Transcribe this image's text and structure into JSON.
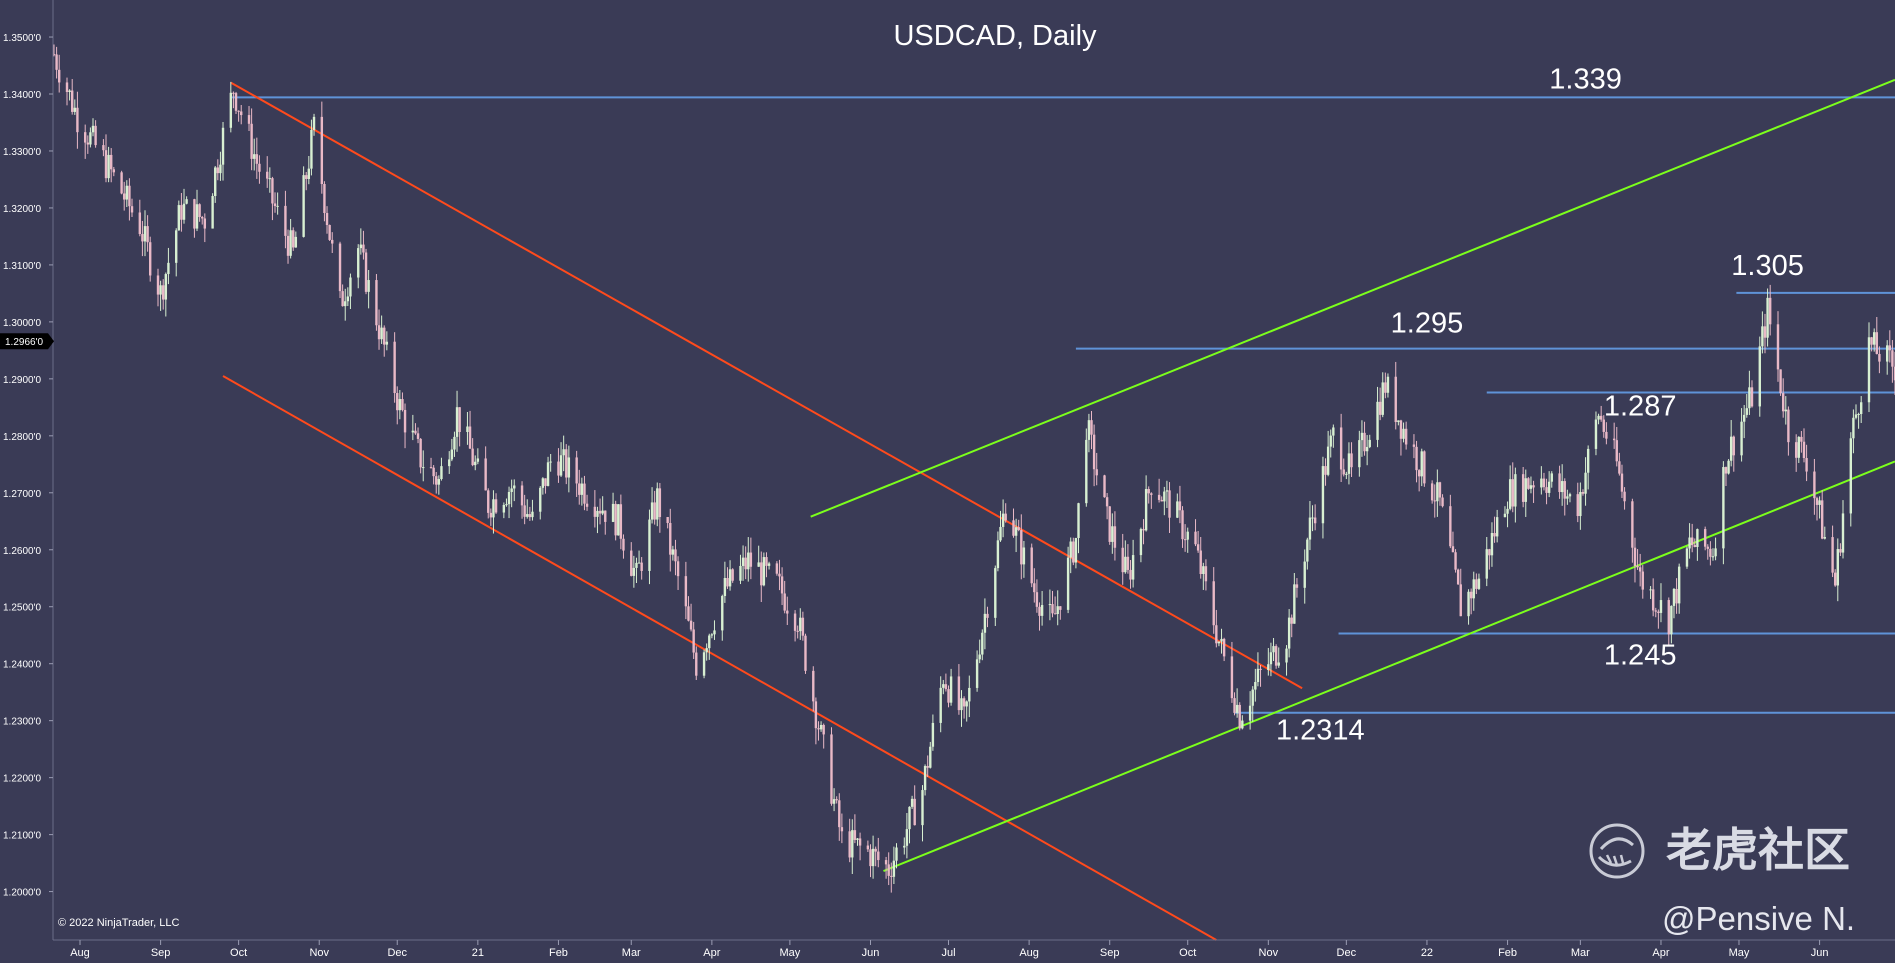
{
  "chart_data": {
    "type": "candlestick",
    "title": "USDCAD, Daily",
    "copyright": "© 2022 NinjaTrader, LLC",
    "watermark_brand": "老虎社区",
    "watermark_author": "@Pensive N.",
    "current_price_label": "1.2966'0",
    "current_price": 1.2966,
    "ylim": [
      1.1915,
      1.3565
    ],
    "y_ticks": [
      {
        "v": 1.35,
        "label": "1.3500'0"
      },
      {
        "v": 1.34,
        "label": "1.3400'0"
      },
      {
        "v": 1.33,
        "label": "1.3300'0"
      },
      {
        "v": 1.32,
        "label": "1.3200'0"
      },
      {
        "v": 1.31,
        "label": "1.3100'0"
      },
      {
        "v": 1.3,
        "label": "1.3000'0"
      },
      {
        "v": 1.29,
        "label": "1.2900'0"
      },
      {
        "v": 1.28,
        "label": "1.2800'0"
      },
      {
        "v": 1.27,
        "label": "1.2700'0"
      },
      {
        "v": 1.26,
        "label": "1.2600'0"
      },
      {
        "v": 1.25,
        "label": "1.2500'0"
      },
      {
        "v": 1.24,
        "label": "1.2400'0"
      },
      {
        "v": 1.23,
        "label": "1.2300'0"
      },
      {
        "v": 1.22,
        "label": "1.2200'0"
      },
      {
        "v": 1.21,
        "label": "1.2100'0"
      },
      {
        "v": 1.2,
        "label": "1.2000'0"
      }
    ],
    "x_range": [
      "2020-07-22",
      "2022-06-30"
    ],
    "x_ticks": [
      {
        "date": "2020-08-01",
        "label": "Aug"
      },
      {
        "date": "2020-09-01",
        "label": "Sep"
      },
      {
        "date": "2020-10-01",
        "label": "Oct"
      },
      {
        "date": "2020-11-01",
        "label": "Nov"
      },
      {
        "date": "2020-12-01",
        "label": "Dec"
      },
      {
        "date": "2021-01-01",
        "label": "21"
      },
      {
        "date": "2021-02-01",
        "label": "Feb"
      },
      {
        "date": "2021-03-01",
        "label": "Mar"
      },
      {
        "date": "2021-04-01",
        "label": "Apr"
      },
      {
        "date": "2021-05-01",
        "label": "May"
      },
      {
        "date": "2021-06-01",
        "label": "Jun"
      },
      {
        "date": "2021-07-01",
        "label": "Jul"
      },
      {
        "date": "2021-08-01",
        "label": "Aug"
      },
      {
        "date": "2021-09-01",
        "label": "Sep"
      },
      {
        "date": "2021-10-01",
        "label": "Oct"
      },
      {
        "date": "2021-11-01",
        "label": "Nov"
      },
      {
        "date": "2021-12-01",
        "label": "Dec"
      },
      {
        "date": "2022-01-01",
        "label": "22"
      },
      {
        "date": "2022-02-01",
        "label": "Feb"
      },
      {
        "date": "2022-03-01",
        "label": "Mar"
      },
      {
        "date": "2022-04-01",
        "label": "Apr"
      },
      {
        "date": "2022-05-01",
        "label": "May"
      },
      {
        "date": "2022-06-01",
        "label": "Jun"
      }
    ],
    "price_path": [
      [
        "2020-07-22",
        1.347
      ],
      [
        "2020-07-31",
        1.336
      ],
      [
        "2020-08-12",
        1.327
      ],
      [
        "2020-08-24",
        1.317
      ],
      [
        "2020-09-01",
        1.305
      ],
      [
        "2020-09-09",
        1.32
      ],
      [
        "2020-09-18",
        1.318
      ],
      [
        "2020-09-29",
        1.341
      ],
      [
        "2020-10-08",
        1.328
      ],
      [
        "2020-10-22",
        1.312
      ],
      [
        "2020-10-30",
        1.334
      ],
      [
        "2020-11-09",
        1.303
      ],
      [
        "2020-11-16",
        1.313
      ],
      [
        "2020-11-24",
        1.299
      ],
      [
        "2020-12-02",
        1.285
      ],
      [
        "2020-12-10",
        1.276
      ],
      [
        "2020-12-17",
        1.272
      ],
      [
        "2020-12-24",
        1.284
      ],
      [
        "2021-01-05",
        1.268
      ],
      [
        "2021-01-14",
        1.271
      ],
      [
        "2021-01-22",
        1.265
      ],
      [
        "2021-01-30",
        1.277
      ],
      [
        "2021-02-12",
        1.27
      ],
      [
        "2021-02-24",
        1.265
      ],
      [
        "2021-03-03",
        1.255
      ],
      [
        "2021-03-11",
        1.269
      ],
      [
        "2021-03-19",
        1.255
      ],
      [
        "2021-03-26",
        1.24
      ],
      [
        "2021-04-06",
        1.253
      ],
      [
        "2021-04-15",
        1.258
      ],
      [
        "2021-04-26",
        1.254
      ],
      [
        "2021-05-04",
        1.248
      ],
      [
        "2021-05-13",
        1.227
      ],
      [
        "2021-05-21",
        1.209
      ],
      [
        "2021-05-31",
        1.207
      ],
      [
        "2021-06-08",
        1.204
      ],
      [
        "2021-06-14",
        1.21
      ],
      [
        "2021-06-21",
        1.218
      ],
      [
        "2021-06-29",
        1.238
      ],
      [
        "2021-07-07",
        1.23
      ],
      [
        "2021-07-16",
        1.251
      ],
      [
        "2021-07-23",
        1.268
      ],
      [
        "2021-08-03",
        1.253
      ],
      [
        "2021-08-10",
        1.247
      ],
      [
        "2021-08-19",
        1.262
      ],
      [
        "2021-08-23",
        1.282
      ],
      [
        "2021-08-31",
        1.265
      ],
      [
        "2021-09-08",
        1.255
      ],
      [
        "2021-09-17",
        1.272
      ],
      [
        "2021-09-24",
        1.268
      ],
      [
        "2021-10-04",
        1.26
      ],
      [
        "2021-10-13",
        1.244
      ],
      [
        "2021-10-21",
        1.231
      ],
      [
        "2021-10-29",
        1.238
      ],
      [
        "2021-11-08",
        1.245
      ],
      [
        "2021-11-17",
        1.264
      ],
      [
        "2021-11-26",
        1.28
      ],
      [
        "2021-12-03",
        1.273
      ],
      [
        "2021-12-16",
        1.289
      ],
      [
        "2021-12-24",
        1.28
      ],
      [
        "2022-01-06",
        1.268
      ],
      [
        "2022-01-14",
        1.25
      ],
      [
        "2022-01-21",
        1.255
      ],
      [
        "2022-02-01",
        1.27
      ],
      [
        "2022-02-14",
        1.273
      ],
      [
        "2022-02-28",
        1.268
      ],
      [
        "2022-03-08",
        1.284
      ],
      [
        "2022-03-15",
        1.275
      ],
      [
        "2022-03-24",
        1.255
      ],
      [
        "2022-04-04",
        1.248
      ],
      [
        "2022-04-12",
        1.261
      ],
      [
        "2022-04-21",
        1.26
      ],
      [
        "2022-04-26",
        1.276
      ],
      [
        "2022-05-06",
        1.287
      ],
      [
        "2022-05-12",
        1.302
      ],
      [
        "2022-05-20",
        1.281
      ],
      [
        "2022-05-27",
        1.276
      ],
      [
        "2022-06-07",
        1.254
      ],
      [
        "2022-06-13",
        1.279
      ],
      [
        "2022-06-20",
        1.296
      ],
      [
        "2022-06-30",
        1.292
      ]
    ],
    "horizontal_levels": [
      {
        "label": "1.339",
        "value": 1.3394,
        "start": "2020-09-28",
        "end": "2022-06-30"
      },
      {
        "label": "1.305",
        "value": 1.3051,
        "start": "2022-04-30",
        "end": "2022-06-30"
      },
      {
        "label": "1.295",
        "value": 1.2953,
        "start": "2021-08-19",
        "end": "2022-06-30"
      },
      {
        "label": "1.287",
        "value": 1.2876,
        "start": "2022-01-24",
        "end": "2022-06-30"
      },
      {
        "label": "1.245",
        "value": 1.2453,
        "start": "2021-11-28",
        "end": "2022-06-30"
      },
      {
        "label": "1.2314",
        "value": 1.2314,
        "start": "2021-10-19",
        "end": "2022-06-30"
      }
    ],
    "trend_lines": [
      {
        "name": "down-channel-upper",
        "color": "#ff4a1c",
        "start": [
          "2020-09-28",
          1.342
        ],
        "end": [
          "2021-11-14",
          1.2357
        ]
      },
      {
        "name": "down-channel-lower",
        "color": "#ff4a1c",
        "start": [
          "2020-09-25",
          1.2905
        ],
        "end": [
          "2021-10-12",
          1.1915
        ]
      },
      {
        "name": "up-channel-upper",
        "color": "#7cff1c",
        "start": [
          "2021-05-09",
          1.2658
        ],
        "end": [
          "2022-06-30",
          1.3425
        ]
      },
      {
        "name": "up-channel-lower",
        "color": "#7cff1c",
        "start": [
          "2021-06-06",
          1.2036
        ],
        "end": [
          "2022-06-30",
          1.2755
        ]
      }
    ],
    "colors": {
      "background": "#3a3b56",
      "level_line": "#5f93d8",
      "candle_up": "#d8f0d2",
      "candle_down": "#e9b9c7",
      "text": "#ffffff"
    }
  }
}
